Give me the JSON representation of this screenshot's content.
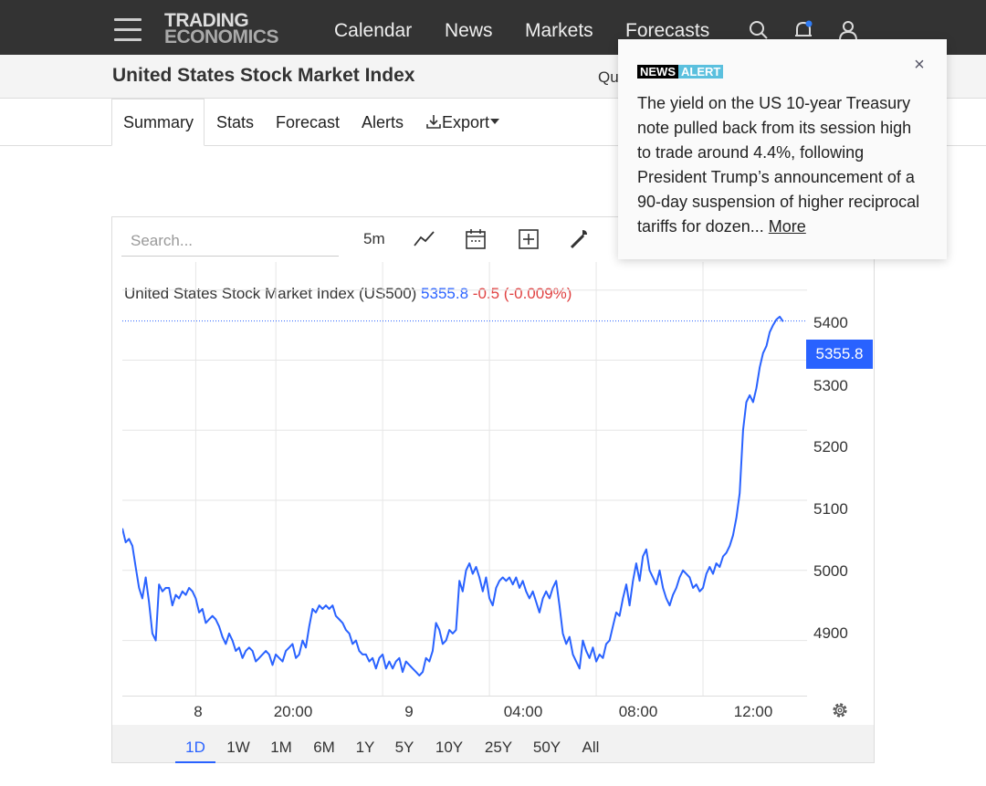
{
  "header": {
    "logo_line1": "TRADING",
    "logo_line2": "ECONOMICS",
    "nav": [
      "Calendar",
      "News",
      "Markets",
      "Forecasts"
    ]
  },
  "page": {
    "title": "United States Stock Market Index",
    "qu_fragment": "Qu"
  },
  "tabs": [
    {
      "label": "Summary",
      "active": true
    },
    {
      "label": "Stats"
    },
    {
      "label": "Forecast"
    },
    {
      "label": "Alerts"
    },
    {
      "label": "Export"
    }
  ],
  "toolbar": {
    "search_placeholder": "Search...",
    "interval": "5m"
  },
  "chart_header": {
    "name": "United States Stock Market Index (US500)",
    "last": "5355.8",
    "change": "-0.5 (-0.009%)"
  },
  "chart_data": {
    "type": "line",
    "ylim": [
      4820,
      5440
    ],
    "y_ticks": [
      "5400",
      "5300",
      "5200",
      "5100",
      "5000",
      "4900"
    ],
    "x_ticks": [
      "8",
      "20:00",
      "9",
      "04:00",
      "08:00",
      "12:00"
    ],
    "last_value": 5355.8,
    "last_label": "5355.8",
    "grid": true,
    "series": [
      {
        "color": "#2962ff",
        "x": [
          0,
          1,
          2,
          3,
          4,
          5,
          6,
          7,
          8,
          9,
          10,
          11,
          12,
          13,
          14,
          15,
          16,
          17,
          18,
          19,
          20,
          21,
          22,
          23,
          24,
          25,
          26,
          27,
          28,
          29,
          30,
          31,
          32,
          33,
          34,
          35,
          36,
          37,
          38,
          39,
          40,
          41,
          42,
          43,
          44,
          45,
          46,
          47,
          48,
          49,
          50,
          51,
          52,
          53,
          54,
          55,
          56,
          57,
          58,
          59,
          60,
          61,
          62,
          63,
          64,
          65,
          66,
          67,
          68,
          69,
          70,
          71,
          72,
          73,
          74,
          75,
          76,
          77,
          78,
          79,
          80,
          81,
          82,
          83,
          84,
          85,
          86,
          87,
          88,
          89,
          90,
          91,
          92,
          93,
          94,
          95,
          96,
          97,
          98,
          99,
          100,
          101,
          102,
          103,
          104,
          105,
          106,
          107,
          108,
          109,
          110,
          111,
          112,
          113,
          114,
          115,
          116,
          117,
          118,
          119,
          120,
          121,
          122,
          123,
          124,
          125,
          126,
          127,
          128,
          129,
          130,
          131,
          132,
          133,
          134,
          135,
          136,
          137,
          138,
          139,
          140,
          141,
          142,
          143,
          144,
          145,
          146,
          147,
          148,
          149,
          150,
          151,
          152,
          153,
          154,
          155,
          156,
          157,
          158,
          159,
          160,
          161,
          162,
          163,
          164,
          165,
          166,
          167,
          168,
          169,
          170,
          171,
          172,
          173,
          174,
          175,
          176,
          177,
          178,
          179,
          180,
          181,
          182,
          183,
          184,
          185,
          186,
          187,
          188,
          189,
          190,
          191,
          192,
          193,
          194,
          195,
          196,
          197,
          198
        ],
        "values": [
          5060,
          5040,
          5045,
          5035,
          5005,
          4975,
          4960,
          4990,
          4955,
          4910,
          4900,
          4980,
          4970,
          4975,
          4975,
          4950,
          4965,
          4960,
          4970,
          4965,
          4975,
          4970,
          4960,
          4940,
          4945,
          4925,
          4930,
          4935,
          4930,
          4920,
          4905,
          4895,
          4910,
          4900,
          4885,
          4890,
          4875,
          4885,
          4890,
          4885,
          4870,
          4875,
          4880,
          4885,
          4880,
          4865,
          4880,
          4875,
          4870,
          4885,
          4890,
          4895,
          4875,
          4880,
          4900,
          4890,
          4920,
          4945,
          4940,
          4950,
          4945,
          4950,
          4945,
          4950,
          4935,
          4930,
          4925,
          4915,
          4910,
          4895,
          4900,
          4885,
          4880,
          4880,
          4870,
          4875,
          4860,
          4875,
          4880,
          4860,
          4870,
          4860,
          4870,
          4875,
          4855,
          4870,
          4865,
          4860,
          4855,
          4850,
          4855,
          4875,
          4870,
          4885,
          4925,
          4915,
          4895,
          4900,
          4915,
          4910,
          4915,
          4985,
          4970,
          5000,
          5010,
          4995,
          5005,
          4990,
          4970,
          4990,
          4960,
          4950,
          4975,
          4985,
          4990,
          4985,
          4990,
          4980,
          4990,
          4975,
          4985,
          4970,
          4960,
          4970,
          4955,
          4940,
          4960,
          4970,
          4960,
          4975,
          4985,
          4950,
          4910,
          4895,
          4905,
          4880,
          4870,
          4860,
          4900,
          4885,
          4875,
          4890,
          4870,
          4880,
          4875,
          4895,
          4900,
          4920,
          4940,
          4935,
          4960,
          4980,
          4950,
          4985,
          5010,
          4985,
          5020,
          5030,
          5000,
          4990,
          4980,
          5000,
          4975,
          4960,
          4950,
          4965,
          4975,
          4990,
          5000,
          4995,
          4990,
          4975,
          4980,
          4970,
          4975,
          4995,
          5005,
          4995,
          5010,
          5005,
          5020,
          5025,
          5035,
          5050,
          5075,
          5110,
          5200,
          5240,
          5250,
          5240,
          5260,
          5290,
          5310,
          5320,
          5340,
          5350,
          5358,
          5362,
          5355
        ]
      }
    ],
    "x_tick_positions": [
      22,
      46,
      78,
      110,
      142,
      174
    ]
  },
  "ranges": [
    "1D",
    "1W",
    "1M",
    "6M",
    "1Y",
    "5Y",
    "10Y",
    "25Y",
    "50Y",
    "All"
  ],
  "active_range": "1D",
  "news_alert": {
    "badge_part1": "NEWS",
    "badge_part2": "ALERT",
    "text": "The yield on the US 10-year Treasury note pulled back from its session high to trade around 4.4%, following President Trump’s announcement of a 90-day suspension of higher reciprocal tariffs for dozen...",
    "more_label": "More",
    "close_glyph": "×"
  }
}
